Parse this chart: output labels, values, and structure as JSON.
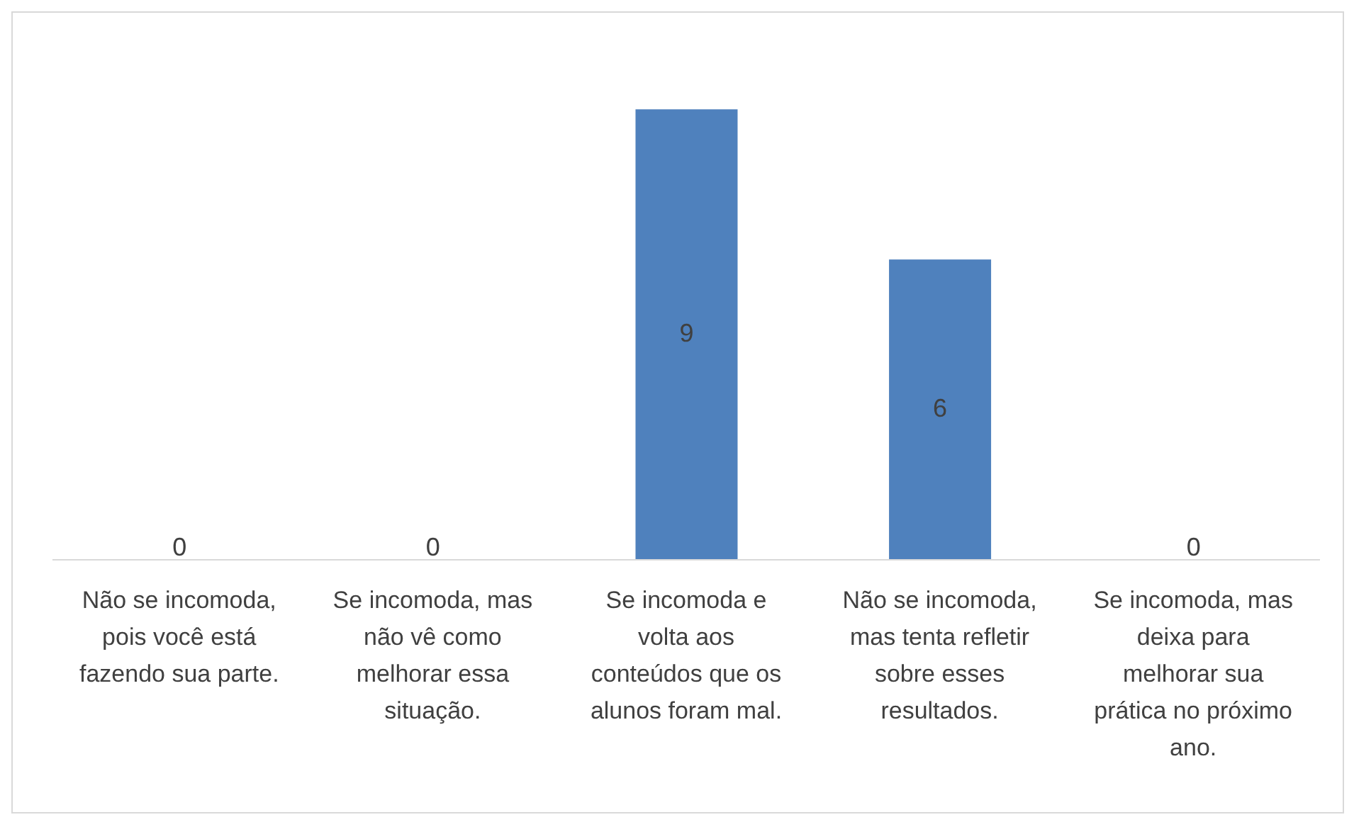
{
  "chart_data": {
    "type": "bar",
    "categories": [
      "Não se incomoda, pois você está fazendo sua parte.",
      "Se incomoda, mas não vê como melhorar essa situação.",
      "Se incomoda e volta aos conteúdos que os alunos foram mal.",
      "Não se incomoda, mas tenta refletir sobre esses resultados.",
      "Se incomoda, mas deixa para melhorar sua prática no próximo ano."
    ],
    "values": [
      0,
      0,
      9,
      6,
      0
    ],
    "color": "#4f81bd",
    "data_labels": true,
    "grid": false,
    "legend": false
  }
}
